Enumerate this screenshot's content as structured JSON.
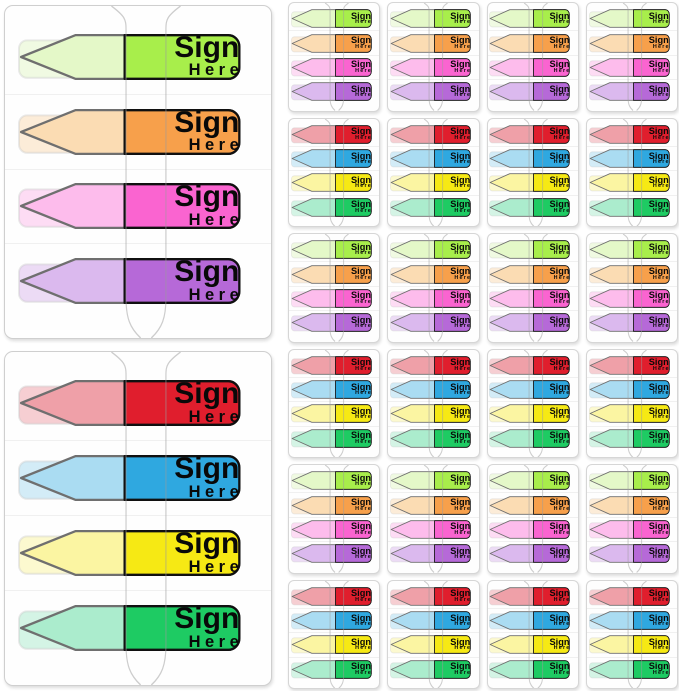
{
  "image_type": "product-photo",
  "background": "#ffffff",
  "flag_label": {
    "line1": "Sign",
    "line2": "Here"
  },
  "palette": {
    "setA": [
      {
        "name": "green",
        "solid": "#a8ee4b",
        "pale": "#e4f8c8"
      },
      {
        "name": "orange",
        "solid": "#f7a04b",
        "pale": "#fbdcb3"
      },
      {
        "name": "pink",
        "solid": "#fa64d0",
        "pale": "#fdbcec"
      },
      {
        "name": "purple",
        "solid": "#b669d8",
        "pale": "#dbb9ee"
      }
    ],
    "setB": [
      {
        "name": "red",
        "solid": "#e01e2d",
        "pale": "#efa0a8"
      },
      {
        "name": "blue",
        "solid": "#2fa8e0",
        "pale": "#aadcf2"
      },
      {
        "name": "yellow",
        "solid": "#f6e914",
        "pale": "#fbf5a2"
      },
      {
        "name": "dark-green",
        "solid": "#1ecb63",
        "pale": "#abeccd"
      }
    ]
  },
  "large_dispensers": [
    {
      "set": "setA"
    },
    {
      "set": "setB"
    }
  ],
  "mini_grid": {
    "rows": 6,
    "cols": 4,
    "row_sets": [
      "setA",
      "setB",
      "setA",
      "setB",
      "setA",
      "setB"
    ]
  }
}
